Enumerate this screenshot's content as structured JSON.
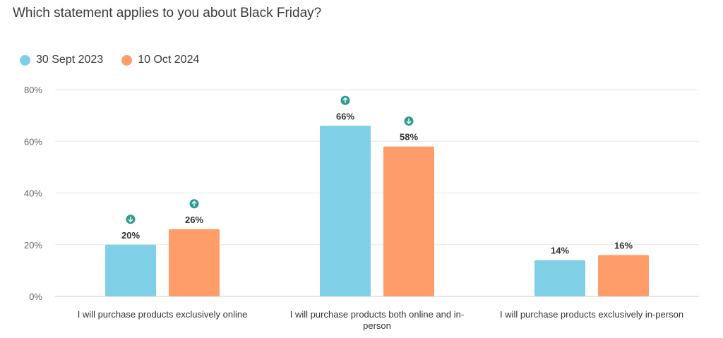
{
  "chart_data": {
    "type": "bar",
    "title": "Which statement applies to you about Black Friday?",
    "xlabel": "",
    "ylabel": "",
    "ylim": [
      0,
      80
    ],
    "yticks": [
      0,
      20,
      40,
      60,
      80
    ],
    "ytick_labels": [
      "0%",
      "20%",
      "40%",
      "60%",
      "80%"
    ],
    "grid": true,
    "legend_position": "top-left",
    "categories": [
      [
        "I will purchase products exclusively online"
      ],
      [
        "I will purchase products both online and in-",
        "person"
      ],
      [
        "I will purchase products exclusively in-person"
      ]
    ],
    "series": [
      {
        "name": "30 Sept 2023",
        "color": "#7fd0e6",
        "values": [
          20,
          66,
          14
        ],
        "labels": [
          "20%",
          "66%",
          "14%"
        ],
        "trend": [
          "down",
          "up",
          ""
        ]
      },
      {
        "name": "10 Oct 2024",
        "color": "#ff9d6a",
        "values": [
          26,
          58,
          16
        ],
        "labels": [
          "26%",
          "58%",
          "16%"
        ],
        "trend": [
          "up",
          "down",
          ""
        ]
      }
    ],
    "trend_icon_color": "#2a9d8f"
  }
}
